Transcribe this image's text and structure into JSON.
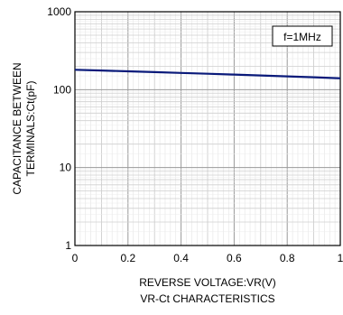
{
  "chart_data": {
    "type": "line",
    "title": "VR-Ct CHARACTERISTICS",
    "xlabel": "REVERSE VOLTAGE:VR(V)",
    "ylabel_line1": "CAPACITANCE BETWEEN",
    "ylabel_line2": "TERMINALS:Ct(pF)",
    "xlim": [
      0,
      1
    ],
    "ylim": [
      1,
      1000
    ],
    "y_scale": "log",
    "grid": true,
    "x_ticks": [
      0,
      0.2,
      0.4,
      0.6,
      0.8,
      1
    ],
    "x_tick_labels": [
      "0",
      "0.2",
      "0.4",
      "0.6",
      "0.8",
      "1"
    ],
    "y_ticks": [
      1,
      10,
      100,
      1000
    ],
    "y_tick_labels": [
      "1",
      "10",
      "100",
      "1000"
    ],
    "annotation": "f=1MHz",
    "line_color": "#0a1a7a",
    "series": [
      {
        "x": [
          0,
          0.1,
          0.2,
          0.3,
          0.4,
          0.5,
          0.6,
          0.7,
          0.8,
          0.9,
          1.0
        ],
        "values": [
          180,
          176,
          172,
          168,
          164,
          160,
          156,
          152,
          148,
          144,
          140
        ]
      }
    ]
  }
}
